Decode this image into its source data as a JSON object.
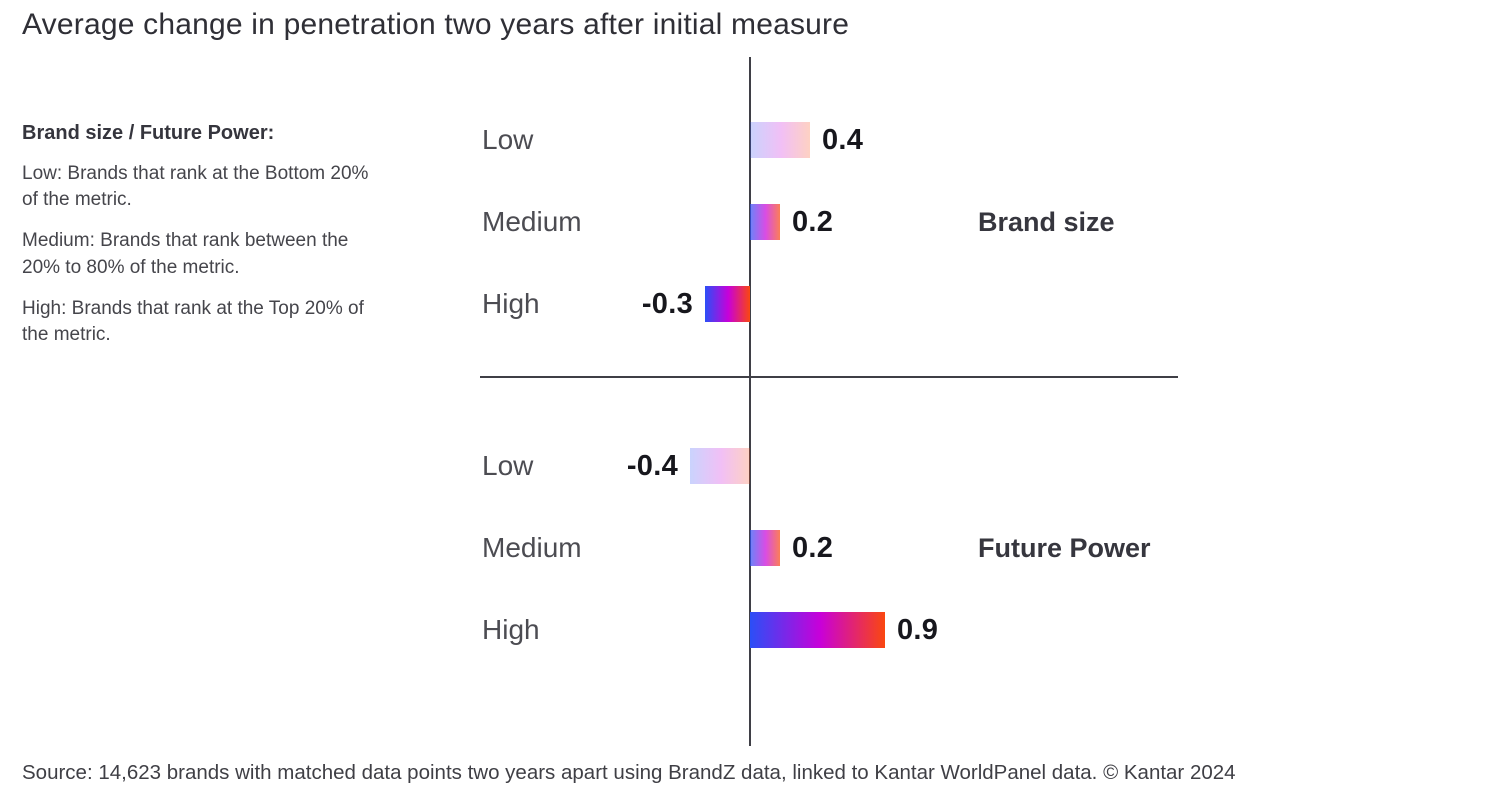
{
  "title": "Average change in penetration two years after initial measure",
  "legend": {
    "heading": "Brand size / Future Power:",
    "items": [
      {
        "term": "Low:",
        "definition": "Brands that rank at the Bottom 20% of the metric."
      },
      {
        "term": "Medium:",
        "definition": "Brands that rank between the 20% to 80% of the metric."
      },
      {
        "term": "High:",
        "definition": "Brands that rank at the Top 20% of the metric."
      }
    ]
  },
  "chart_data": {
    "type": "bar",
    "orientation": "horizontal",
    "title": "Average change in penetration two years after initial measure",
    "categories": [
      "Low",
      "Medium",
      "High"
    ],
    "series": [
      {
        "name": "Brand size",
        "values": [
          0.4,
          0.2,
          -0.3
        ]
      },
      {
        "name": "Future Power",
        "values": [
          -0.4,
          0.2,
          0.9
        ]
      }
    ],
    "xlim": [
      -1.8,
      2.85
    ],
    "value_labels": true,
    "grid": false,
    "legend_position": "right-of-middle-row",
    "colors": {
      "gradient": [
        "#2b4ff7",
        "#c800d9",
        "#fa470f"
      ],
      "opacity_by_category": {
        "Low": 0.25,
        "Medium": 0.7,
        "High": 1
      },
      "axis": "#3f3f46",
      "text": "#36363e"
    }
  },
  "source": "Source: 14,623 brands with matched data points two years apart using BrandZ data, linked to Kantar WorldPanel data. © Kantar 2024"
}
